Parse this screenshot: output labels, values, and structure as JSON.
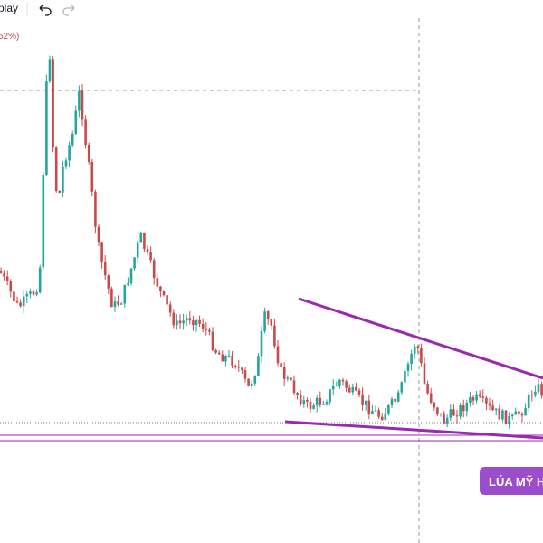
{
  "toolbar": {
    "label": "play"
  },
  "legend": {
    "change": "52%)"
  },
  "badge": {
    "label": "LÚA MỸ H"
  }
}
